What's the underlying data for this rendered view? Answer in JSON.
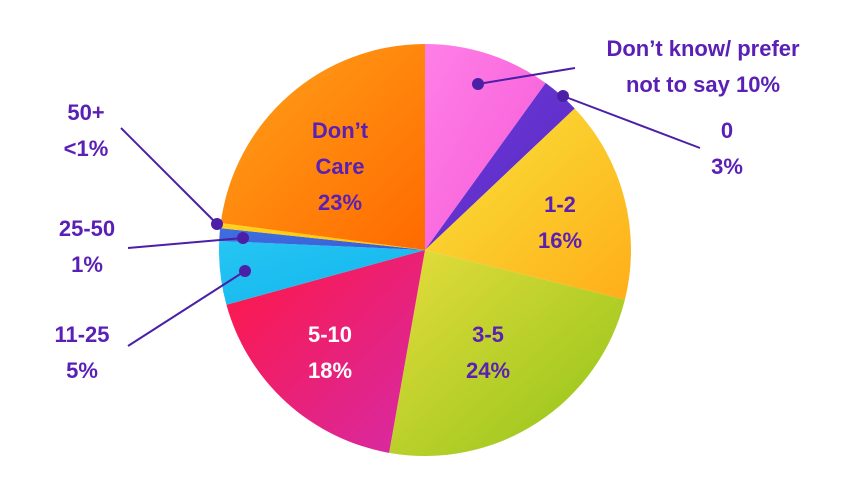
{
  "chart_data": {
    "type": "pie",
    "start_angle_deg": 0,
    "direction": "clockwise",
    "slices": [
      {
        "label": "Don’t know/ prefer not to say",
        "value": 10,
        "display": "Don’t know/ prefer not to say 10%",
        "colors": [
          "#ff7fe6",
          "#f55ad8"
        ],
        "label_lines": [
          "Don’t know/ prefer",
          "not to say 10%"
        ],
        "label_color": "#5a1fb5"
      },
      {
        "label": "0",
        "value": 3,
        "display": "0 3%",
        "colors": [
          "#6c36d8",
          "#5a2cc2"
        ],
        "label_lines": [
          "0",
          "3%"
        ],
        "label_color": "#5a1fb5"
      },
      {
        "label": "1-2",
        "value": 16,
        "display": "1-2 16%",
        "colors": [
          "#f7e33a",
          "#ffae1a"
        ],
        "label_lines": [
          "1-2",
          "16%"
        ],
        "label_color": "#5a1fb5"
      },
      {
        "label": "3-5",
        "value": 24,
        "display": "3-5 24%",
        "colors": [
          "#e6dc3c",
          "#8fc419"
        ],
        "label_lines": [
          "3-5",
          "24%"
        ],
        "label_color": "#5a1fb5"
      },
      {
        "label": "5-10",
        "value": 18,
        "display": "5-10 18%",
        "colors": [
          "#ff1744",
          "#d62aa6"
        ],
        "label_lines": [
          "5-10",
          "18%"
        ],
        "label_color": "#ffffff"
      },
      {
        "label": "11-25",
        "value": 5,
        "display": "11-25 5%",
        "colors": [
          "#25c6f2",
          "#12b3ee"
        ],
        "label_lines": [
          "11-25",
          "5%"
        ],
        "label_color": "#5a1fb5"
      },
      {
        "label": "25-50",
        "value": 1,
        "display": "25-50 1%",
        "colors": [
          "#3f6fe0",
          "#3a5ed6"
        ],
        "label_lines": [
          "25-50",
          "1%"
        ],
        "label_color": "#5a1fb5"
      },
      {
        "label": "50+",
        "value": 0.4,
        "display": "50+ <1%",
        "colors": [
          "#ffd21f",
          "#ffc400"
        ],
        "label_lines": [
          "50+",
          "<1%"
        ],
        "label_color": "#5a1fb5"
      },
      {
        "label": "Don’t Care",
        "value": 23,
        "display": "Don’t Care 23%",
        "colors": [
          "#ffa31a",
          "#ff6a00"
        ],
        "label_lines": [
          "Don’t",
          "Care",
          "23%"
        ],
        "label_color": "#5a1fb5"
      }
    ],
    "leader_color": "#4b1fa6"
  }
}
